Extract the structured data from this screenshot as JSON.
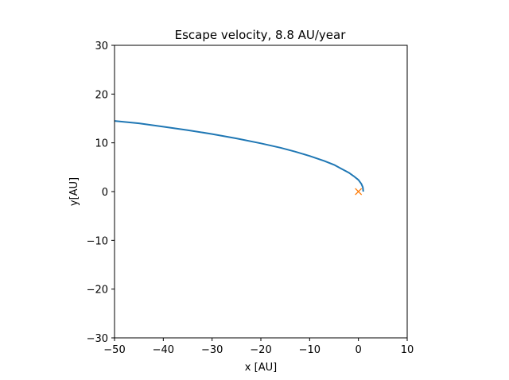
{
  "chart_data": {
    "type": "line",
    "title": "Escape velocity, 8.8 AU/year",
    "xlabel": "x [AU]",
    "ylabel": "y[AU]",
    "xlim": [
      -50,
      10
    ],
    "ylim": [
      -30,
      30
    ],
    "xticks": [
      -50,
      -40,
      -30,
      -20,
      -10,
      0,
      10
    ],
    "yticks": [
      -30,
      -20,
      -10,
      0,
      10,
      20,
      30
    ],
    "xtick_labels": [
      "−50",
      "−40",
      "−30",
      "−20",
      "−10",
      "0",
      "10"
    ],
    "ytick_labels": [
      "−30",
      "−20",
      "−10",
      "0",
      "10",
      "20",
      "30"
    ],
    "grid": false,
    "series": [
      {
        "color": "#1f77b4",
        "x": [
          1,
          0.9,
          0.6,
          0,
          -1,
          -2,
          -3.5,
          -5,
          -7,
          -10,
          -13,
          -16,
          -20,
          -25,
          -30,
          -35,
          -40,
          -45,
          -50
        ],
        "y": [
          0,
          0.9,
          1.6,
          2.4,
          3.2,
          3.9,
          4.7,
          5.5,
          6.3,
          7.3,
          8.2,
          9.0,
          9.9,
          10.9,
          11.8,
          12.6,
          13.3,
          14.0,
          14.5
        ]
      }
    ],
    "markers": [
      {
        "x": 0,
        "y": 0,
        "symbol": "x",
        "color": "#ff7f0e"
      }
    ]
  }
}
